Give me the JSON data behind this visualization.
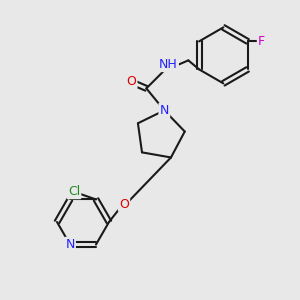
{
  "bg_color": "#e8e8e8",
  "bond_color": "#1a1a1a",
  "bond_width": 1.5,
  "atom_colors": {
    "N": "#2020ff",
    "O": "#dd0000",
    "F": "#cc00cc",
    "Cl": "#228B22",
    "C": "#1a1a1a"
  },
  "font_size": 9,
  "figsize": [
    3.0,
    3.0
  ],
  "dpi": 100
}
